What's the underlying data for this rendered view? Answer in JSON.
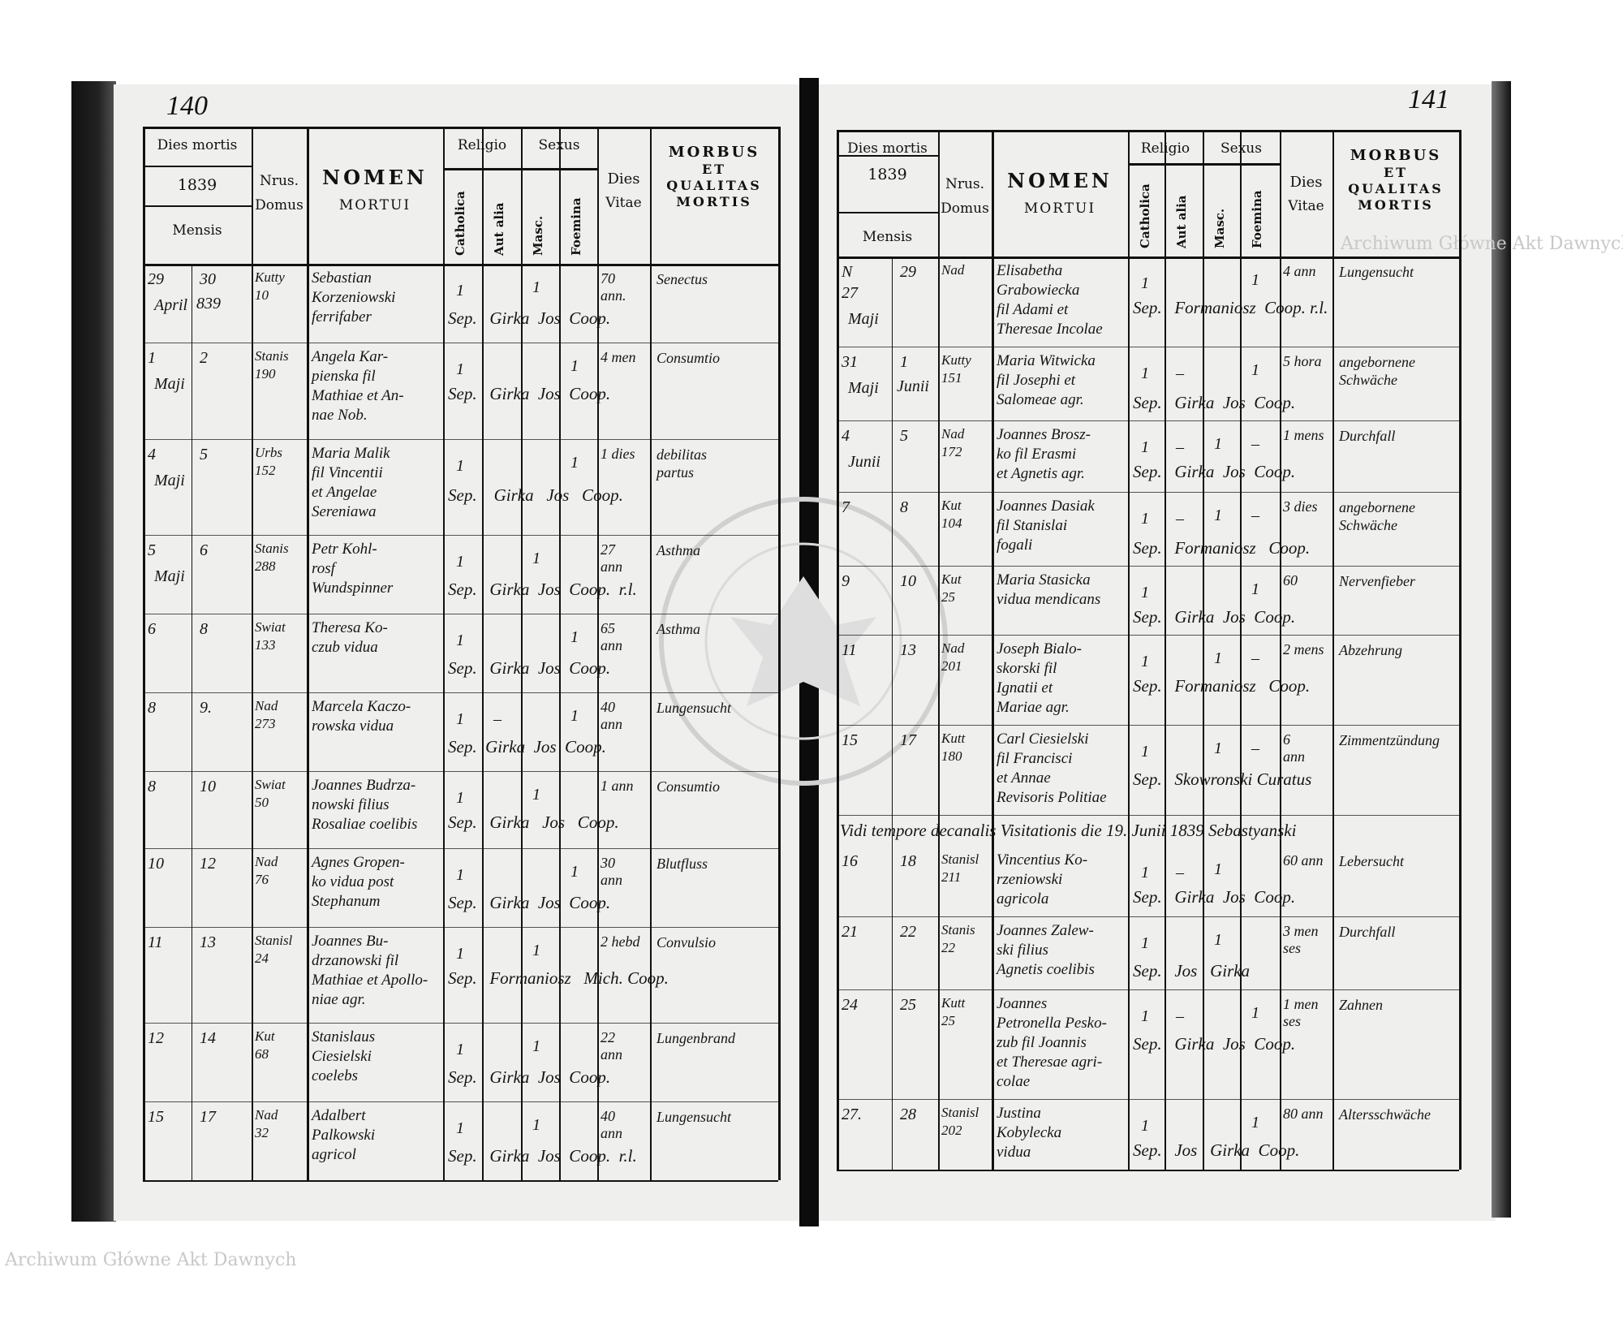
{
  "document": {
    "year_printed": "1839",
    "left_page_number": "140",
    "right_page_number": "141",
    "watermark_text": "Archiwum Główne Akt Dawnych",
    "stamp_text": "ARCHIWUM GŁÓWNE AKT DAWNYCH",
    "colors": {
      "paper": "#efefed",
      "ink": "#111111",
      "binding": "#0c0c0c"
    }
  },
  "header": {
    "dies_mortis": "Dies mortis",
    "year": "1839",
    "mensis": "Mensis",
    "nrus": "Nrus.",
    "domus": "Domus",
    "nomen": "NOMEN",
    "mortui": "MORTUI",
    "religio": "Religio",
    "catholica": "Catholica",
    "aut_alia": "Aut alia",
    "sexus": "Sexus",
    "masc": "Masc.",
    "foemina": "Foemina",
    "dies": "Dies",
    "vitae": "Vitae",
    "morbus": "MORBUS",
    "et": "ET",
    "qualitas": "QUALITAS",
    "mortis": "MORTIS"
  },
  "left_entries": [
    {
      "day": "29",
      "burial": "30",
      "month": "April",
      "month2": "839",
      "house": "Kutty\n10",
      "name": "Sebastian\nKorzeniowski\nferrifaber",
      "cath": "1",
      "alia": "",
      "masc": "1",
      "foem": "",
      "vitae": "70\nann.",
      "morbus": "Senectus",
      "sep": "Sep.   Girka  Jos  Coop."
    },
    {
      "day": "1",
      "burial": "2",
      "month": "Maji",
      "month2": "",
      "house": "Stanis\n190",
      "name": "Angela Kar-\npienska fil\nMathiae et An-\nnae Nob.",
      "cath": "1",
      "alia": "",
      "masc": "",
      "foem": "1",
      "vitae": "4 men",
      "morbus": "Consumtio",
      "sep": "Sep.   Girka  Jos  Coop."
    },
    {
      "day": "4",
      "burial": "5",
      "month": "Maji",
      "month2": "",
      "house": "Urbs\n152",
      "name": "Maria Malik\nfil Vincentii\net Angelae\nSereniawa",
      "cath": "1",
      "alia": "",
      "masc": "",
      "foem": "1",
      "vitae": "1 dies",
      "morbus": "debilitas\npartus",
      "sep": "Sep.    Girka   Jos   Coop."
    },
    {
      "day": "5",
      "burial": "6",
      "month": "Maji",
      "month2": "",
      "house": "Stanis\n288",
      "name": "Petr Kohl-\nrosf\nWundspinner",
      "cath": "1",
      "alia": "",
      "masc": "1",
      "foem": "",
      "vitae": "27\nann",
      "morbus": "Asthma",
      "sep": "Sep.   Girka  Jos  Coop.  r.l."
    },
    {
      "day": "6",
      "burial": "8",
      "month": "",
      "month2": "",
      "house": "Swiat\n133",
      "name": "Theresa Ko-\nczub vidua",
      "cath": "1",
      "alia": "",
      "masc": "",
      "foem": "1",
      "vitae": "65\nann",
      "morbus": "Asthma",
      "sep": "Sep.   Girka  Jos  Coop."
    },
    {
      "day": "8",
      "burial": "9.",
      "month": "",
      "month2": "",
      "house": "Nad\n273",
      "name": "Marcela Kaczo-\nrowska vidua",
      "cath": "1",
      "alia": "–",
      "masc": "",
      "foem": "1",
      "vitae": "40\nann",
      "morbus": "Lungensucht",
      "sep": "Sep.  Girka  Jos  Coop."
    },
    {
      "day": "8",
      "burial": "10",
      "month": "",
      "month2": "",
      "house": "Swiat\n50",
      "name": "Joannes Budrza-\nnowski filius\nRosaliae coelibis",
      "cath": "1",
      "alia": "",
      "masc": "1",
      "foem": "",
      "vitae": "1 ann",
      "morbus": "Consumtio",
      "sep": "Sep.   Girka   Jos   Coop."
    },
    {
      "day": "10",
      "burial": "12",
      "month": "",
      "month2": "",
      "house": "Nad\n76",
      "name": "Agnes Gropen-\nko vidua post\nStephanum",
      "cath": "1",
      "alia": "",
      "masc": "",
      "foem": "1",
      "vitae": "30\nann",
      "morbus": "Blutfluss",
      "sep": "Sep.   Girka  Jos  Coop."
    },
    {
      "day": "11",
      "burial": "13",
      "month": "",
      "month2": "",
      "house": "Stanisl\n24",
      "name": "Joannes Bu-\ndrzanowski fil\nMathiae et Apollo-\nniae agr.",
      "cath": "1",
      "alia": "",
      "masc": "1",
      "foem": "",
      "vitae": "2 hebd",
      "morbus": "Convulsio",
      "sep": "Sep.   Formaniosz   Mich. Coop."
    },
    {
      "day": "12",
      "burial": "14",
      "month": "",
      "month2": "",
      "house": "Kut\n68",
      "name": "Stanislaus\nCiesielski\n   coelebs",
      "cath": "1",
      "alia": "",
      "masc": "1",
      "foem": "",
      "vitae": "22\nann",
      "morbus": "Lungenbrand",
      "sep": "Sep.   Girka  Jos  Coop."
    },
    {
      "day": "15",
      "burial": "17",
      "month": "",
      "month2": "",
      "house": "Nad\n32",
      "name": "Adalbert\nPalkowski\nagricol",
      "cath": "1",
      "alia": "",
      "masc": "1",
      "foem": "",
      "vitae": "40\nann",
      "morbus": "Lungensucht",
      "sep": "Sep.   Girka  Jos  Coop.  r.l."
    }
  ],
  "right_entries": [
    {
      "day": "N\n27",
      "burial": "29",
      "month": "Maji",
      "month2": "",
      "house": "Nad",
      "name": "Elisabetha\nGrabowiecka\nfil Adami et\nTheresae Incolae",
      "cath": "1",
      "alia": "",
      "masc": "",
      "foem": "1",
      "vitae": "4 ann",
      "morbus": "Lungensucht",
      "sep": "Sep.   Formaniosz  Coop. r.l."
    },
    {
      "day": "31",
      "burial": "1",
      "month": "Maji",
      "month2": "Junii",
      "house": "Kutty\n151",
      "name": "Maria Witwicka\nfil Josephi et\nSalomeae agr.",
      "cath": "1",
      "alia": "–",
      "masc": "",
      "foem": "1",
      "vitae": "5 hora",
      "morbus": "angebornene\nSchwäche",
      "sep": "Sep.   Girka  Jos  Coop."
    },
    {
      "day": "4",
      "burial": "5",
      "month": "Junii",
      "month2": "",
      "house": "Nad\n172",
      "name": "Joannes Brosz-\nko fil Erasmi\net Agnetis agr.",
      "cath": "1",
      "alia": "–",
      "masc": "1",
      "foem": "–",
      "vitae": "1 mens",
      "morbus": "Durchfall",
      "sep": "Sep.   Girka  Jos  Coop."
    },
    {
      "day": "7",
      "burial": "8",
      "month": "",
      "month2": "",
      "house": "Kut\n104",
      "name": "Joannes Dasiak\nfil Stanislai\n  fogali",
      "cath": "1",
      "alia": "–",
      "masc": "1",
      "foem": "–",
      "vitae": "3 dies",
      "morbus": "angebornene\nSchwäche",
      "sep": "Sep.   Formaniosz   Coop."
    },
    {
      "day": "9",
      "burial": "10",
      "month": "",
      "month2": "",
      "house": "Kut\n25",
      "name": "Maria Stasicka\nvidua mendicans",
      "cath": "1",
      "alia": "",
      "masc": "",
      "foem": "1",
      "vitae": "60",
      "morbus": "Nervenfieber",
      "sep": "Sep.   Girka  Jos  Coop."
    },
    {
      "day": "11",
      "burial": "13",
      "month": "",
      "month2": "",
      "house": "Nad\n201",
      "name": "Joseph Bialo-\nskorski fil\nIgnatii et\nMariae agr.",
      "cath": "1",
      "alia": "",
      "masc": "1",
      "foem": "–",
      "vitae": "2 mens",
      "morbus": "Abzehrung",
      "sep": "Sep.   Formaniosz   Coop."
    },
    {
      "day": "15",
      "burial": "17",
      "month": "",
      "month2": "",
      "house": "Kutt\n180",
      "name": "Carl Ciesielski\nfil Francisci\net Annae\nRevisoris Politiae",
      "cath": "1",
      "alia": "",
      "masc": "1",
      "foem": "–",
      "vitae": "6\nann",
      "morbus": "Zimmentzündung",
      "sep": "Sep.   Skowronski Curatus"
    },
    {
      "day": "16",
      "burial": "18",
      "month": "",
      "month2": "",
      "house": "Stanisl\n211",
      "name": "Vincentius Ko-\nrzeniowski\n agricola",
      "cath": "1",
      "alia": "–",
      "masc": "1",
      "foem": "",
      "vitae": "60 ann",
      "morbus": "Lebersucht",
      "sep": "Sep.   Girka  Jos  Coop."
    },
    {
      "day": "21",
      "burial": "22",
      "month": "",
      "month2": "",
      "house": "Stanis\n22",
      "name": "Joannes Zalew-\nski filius\nAgnetis coelibis",
      "cath": "1",
      "alia": "",
      "masc": "1",
      "foem": "",
      "vitae": "3 men\nses",
      "morbus": "Durchfall",
      "sep": "Sep.   Jos   Girka"
    },
    {
      "day": "24",
      "burial": "25",
      "month": "",
      "month2": "",
      "house": "Kutt\n25",
      "name": "Joannes\nPetronella Pesko-\nzub fil Joannis\net Theresae agri-\n colae",
      "cath": "1",
      "alia": "–",
      "masc": "",
      "foem": "1",
      "vitae": "1 men\nses",
      "morbus": "Zahnen",
      "sep": "Sep.   Girka  Jos  Coop."
    },
    {
      "day": "27.",
      "burial": "28",
      "month": "",
      "month2": "",
      "house": "Stanisl\n202",
      "name": "Justina\nKobylecka\nvidua",
      "cath": "1",
      "alia": "",
      "masc": "",
      "foem": "1",
      "vitae": "80 ann",
      "morbus": "Altersschwäche",
      "sep": "Sep.   Jos   Girka  Coop."
    }
  ],
  "visitation_note": "Vidi tempore decanalis Visitationis die 19. Junii 1839 Sebastyanski"
}
